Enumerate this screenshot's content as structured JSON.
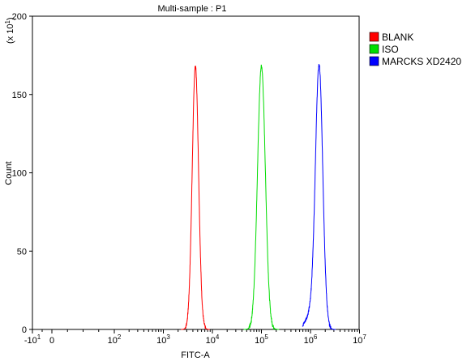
{
  "chart_data": {
    "type": "line",
    "title": "Multi-sample : P1",
    "xlabel": "FITC-A",
    "ylabel": "Count",
    "y_scale_note": "(x 10",
    "y_scale_exp": "1",
    "y_scale_close": ")",
    "x_scale": "biexponential-log",
    "ylim": [
      0,
      200
    ],
    "y_ticks": [
      0,
      50,
      100,
      150,
      200
    ],
    "y_tick_labels": [
      "0",
      "50",
      "100",
      "150",
      "200"
    ],
    "x_ticks": [
      {
        "base": "-10",
        "exp": "1",
        "v": -10
      },
      {
        "base": "0",
        "exp": "",
        "v": 0
      },
      {
        "base": "10",
        "exp": "2",
        "v": 100
      },
      {
        "base": "10",
        "exp": "3",
        "v": 1000
      },
      {
        "base": "10",
        "exp": "4",
        "v": 10000
      },
      {
        "base": "10",
        "exp": "5",
        "v": 100000
      },
      {
        "base": "10",
        "exp": "6",
        "v": 1000000
      },
      {
        "base": "10",
        "exp": "7",
        "v": 10000000
      }
    ],
    "grid": false,
    "legend_position": "right",
    "series": [
      {
        "name": "BLANK",
        "color": "#ff0000",
        "peak_x": 4500,
        "peak_y": 168,
        "width_decades": 0.065,
        "shoulder": 0
      },
      {
        "name": "ISO",
        "color": "#00dd00",
        "peak_x": 100000,
        "peak_y": 168,
        "width_decades": 0.08,
        "shoulder": 0
      },
      {
        "name": "MARCKS XD2420",
        "color": "#0000ff",
        "peak_x": 1500000,
        "peak_y": 166,
        "width_decades": 0.075,
        "shoulder": 1
      }
    ]
  }
}
